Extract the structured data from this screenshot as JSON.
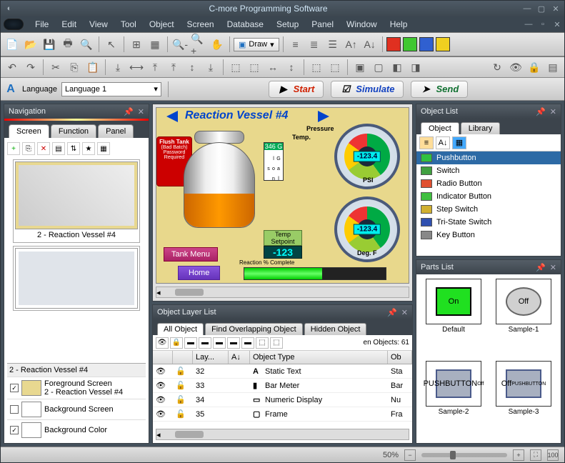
{
  "window": {
    "title": "C-more Programming Software"
  },
  "menu": [
    "File",
    "Edit",
    "View",
    "Tool",
    "Object",
    "Screen",
    "Database",
    "Setup",
    "Panel",
    "Window",
    "Help"
  ],
  "toolbar1": {
    "draw_label": "Draw",
    "colors": [
      "#e03020",
      "#40c830",
      "#3060d0",
      "#f0d020"
    ]
  },
  "langbar": {
    "label": "Language",
    "value": "Language 1",
    "start": "Start",
    "simulate": "Simulate",
    "send": "Send",
    "start_color": "#d02000",
    "simulate_color": "#1040c0",
    "send_color": "#107030"
  },
  "navigation": {
    "title": "Navigation",
    "tabs": [
      "Screen",
      "Function",
      "Panel"
    ],
    "thumb_caption": "2 - Reaction Vessel #4",
    "selected_label": "2 - Reaction Vessel #4",
    "rows": [
      {
        "label1": "Foreground Screen",
        "label2": "2 - Reaction Vessel #4",
        "checked": true,
        "sw": "#e8d890"
      },
      {
        "label1": "Background Screen",
        "label2": "",
        "checked": false,
        "sw": "#ffffff"
      },
      {
        "label1": "Background Color",
        "label2": "",
        "checked": true,
        "sw": "#ffffff"
      }
    ]
  },
  "canvas": {
    "title": "Reaction Vessel #4",
    "flush": "Flush Tank",
    "flush2": "(Bad Batch) Password Required",
    "tank_menu": "Tank Menu",
    "home": "Home",
    "pressure_lbl": "Pressure",
    "temp_lbl": "Temp.",
    "psi_lbl": "PSI",
    "degf_lbl": "Deg. F",
    "gauge_val": "-123.4",
    "gallons_lbl": "G a l l o n s",
    "gallons_val": "346 G",
    "setpoint_lbl": "Temp Setpoint",
    "setpoint_val": "-123",
    "reaction_lbl": "Reaction % Complete"
  },
  "object_layer": {
    "title": "Object Layer List",
    "tabs": [
      "All Object",
      "Find Overlapping Object",
      "Hidden Object"
    ],
    "count_label": "en Objects: 61",
    "cols": {
      "layer": "Lay...",
      "sort": "A↓",
      "type": "Object Type",
      "obj": "Ob"
    },
    "rows": [
      {
        "layer": "32",
        "type": "Static Text",
        "icon": "A",
        "ob": "Sta"
      },
      {
        "layer": "33",
        "type": "Bar Meter",
        "icon": "▮",
        "ob": "Bar"
      },
      {
        "layer": "34",
        "type": "Numeric Display",
        "icon": "▭",
        "ob": "Nu"
      },
      {
        "layer": "35",
        "type": "Frame",
        "icon": "▢",
        "ob": "Fra"
      }
    ]
  },
  "object_list": {
    "title": "Object List",
    "tabs": [
      "Object",
      "Library"
    ],
    "items": [
      {
        "label": "Pushbutton",
        "color": "#30c040",
        "sel": true
      },
      {
        "label": "Switch",
        "color": "#40a040"
      },
      {
        "label": "Radio Button",
        "color": "#e05030"
      },
      {
        "label": "Indicator Button",
        "color": "#40c040"
      },
      {
        "label": "Step Switch",
        "color": "#d0b030"
      },
      {
        "label": "Tri-State Switch",
        "color": "#3050b0"
      },
      {
        "label": "Key Button",
        "color": "#888888"
      }
    ]
  },
  "parts": {
    "title": "Parts List",
    "items": [
      {
        "label": "Default",
        "text": "On",
        "bg": "#20e020",
        "border": "#000000"
      },
      {
        "label": "Sample-1",
        "text": "Off",
        "bg": "#d0d0d0",
        "border": "#666666",
        "round": true
      },
      {
        "label": "Sample-2",
        "text": "PUSHBUTTON",
        "text2": "Off",
        "bg": "#a8b0c0",
        "border": "#4a5a8a"
      },
      {
        "label": "Sample-3",
        "text": "Off",
        "text2": "PUSHBUTTON",
        "bg": "#a8b0c0",
        "border": "#4a5a8a"
      }
    ]
  },
  "statusbar": {
    "zoom": "50%",
    "scale": "100"
  }
}
